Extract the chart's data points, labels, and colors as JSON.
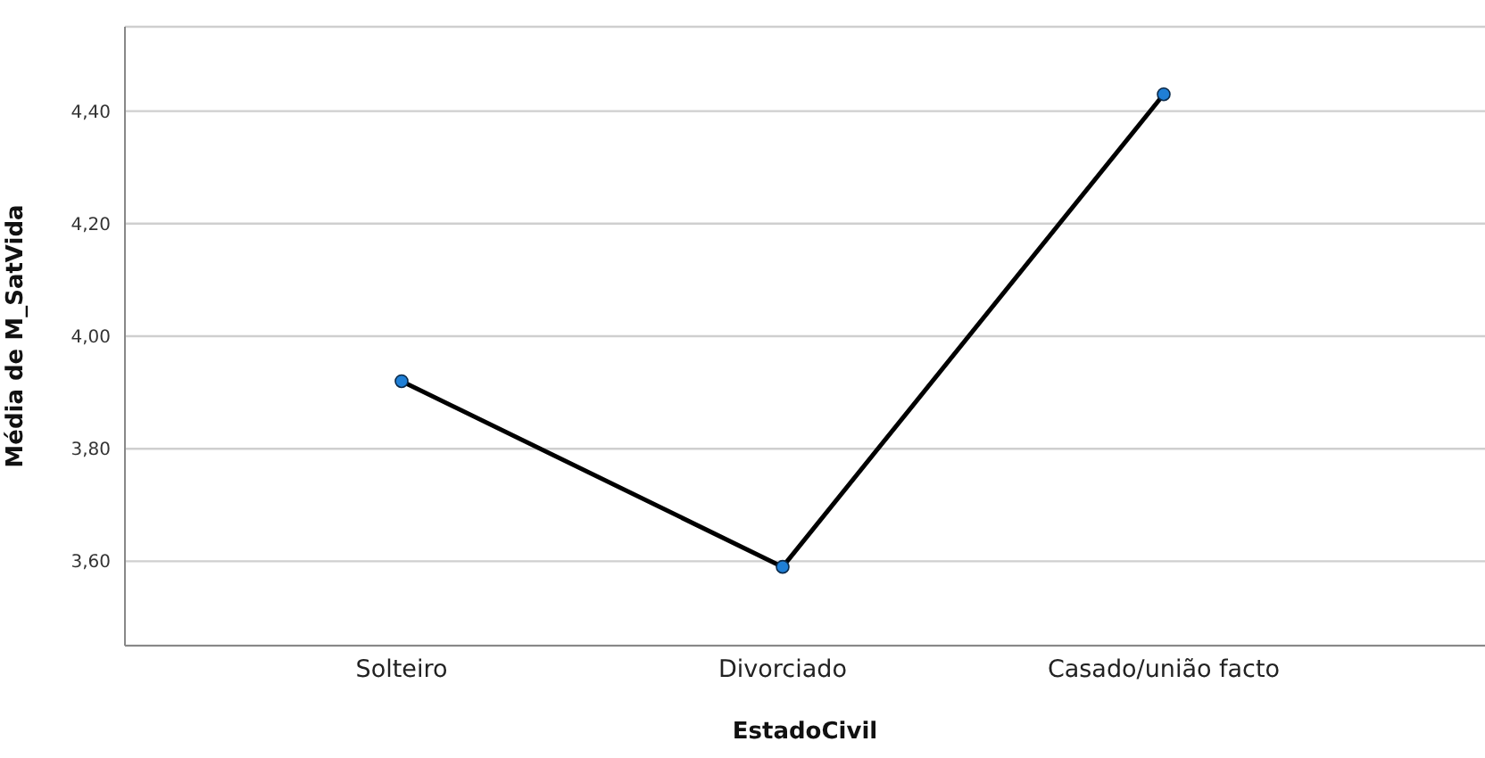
{
  "chart_data": {
    "type": "line",
    "xlabel": "EstadoCivil",
    "ylabel": "Média de M_SatVida",
    "categories": [
      "Solteiro",
      "Divorciado",
      "Casado/união facto"
    ],
    "series": [
      {
        "color": "#000000",
        "values": [
          3.92,
          3.59,
          4.43
        ]
      }
    ],
    "ylim": [
      3.45,
      4.55
    ],
    "yticks": [
      {
        "value": 3.6,
        "label": "3,60"
      },
      {
        "value": 3.8,
        "label": "3,80"
      },
      {
        "value": 4.0,
        "label": "4,00"
      },
      {
        "value": 4.2,
        "label": "4,20"
      },
      {
        "value": 4.4,
        "label": "4,40"
      }
    ],
    "grid": "y",
    "marker": "circle",
    "line_style": "solid",
    "legend": false
  }
}
